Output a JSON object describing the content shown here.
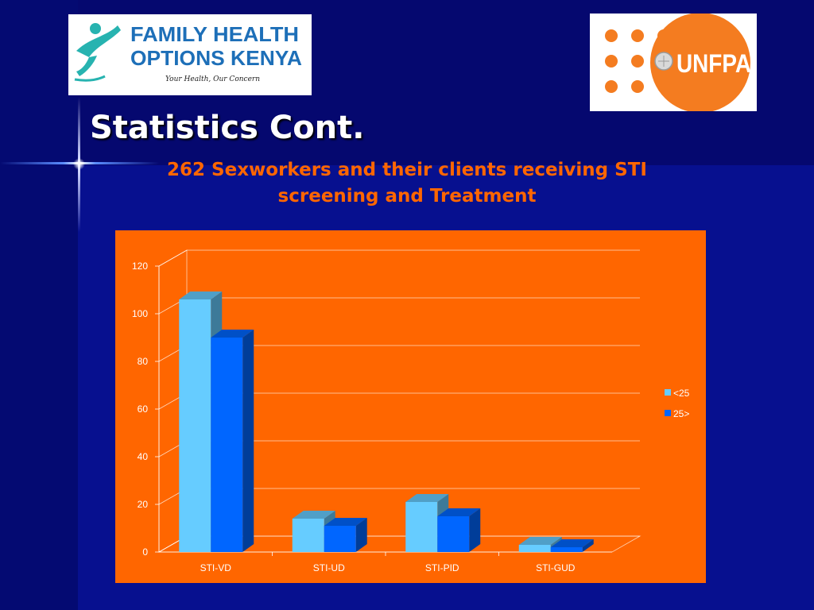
{
  "slide": {
    "title": "Statistics Cont.",
    "subtitle": "262 Sexworkers and their clients receiving STI screening and Treatment"
  },
  "logos": {
    "left": {
      "line1": "FAMILY HEALTH",
      "line2": "OPTIONS KENYA",
      "tagline": "Your Health, Our Concern",
      "color": "#1d6fb8",
      "accent": "#27b3b0"
    },
    "right": {
      "text": "UNFPA",
      "color": "#f47c20"
    }
  },
  "colors": {
    "background": "#07108f",
    "title": "#ffffff",
    "subtitle": "#ff6600",
    "chart_background": "#ff6600"
  },
  "chart_data": {
    "type": "bar",
    "categories": [
      "STI-VD",
      "STI-UD",
      "STI-PID",
      "STI-GUD"
    ],
    "series": [
      {
        "name": "<25",
        "values": [
          106,
          14,
          21,
          3
        ],
        "color": "#66ccff"
      },
      {
        "name": "25>",
        "values": [
          90,
          11,
          15,
          2
        ],
        "color": "#0066ff"
      }
    ],
    "ylim": [
      0,
      120
    ],
    "yticks": [
      0,
      20,
      40,
      60,
      80,
      100,
      120
    ],
    "grid": true,
    "legend": "right",
    "three_d": true
  }
}
